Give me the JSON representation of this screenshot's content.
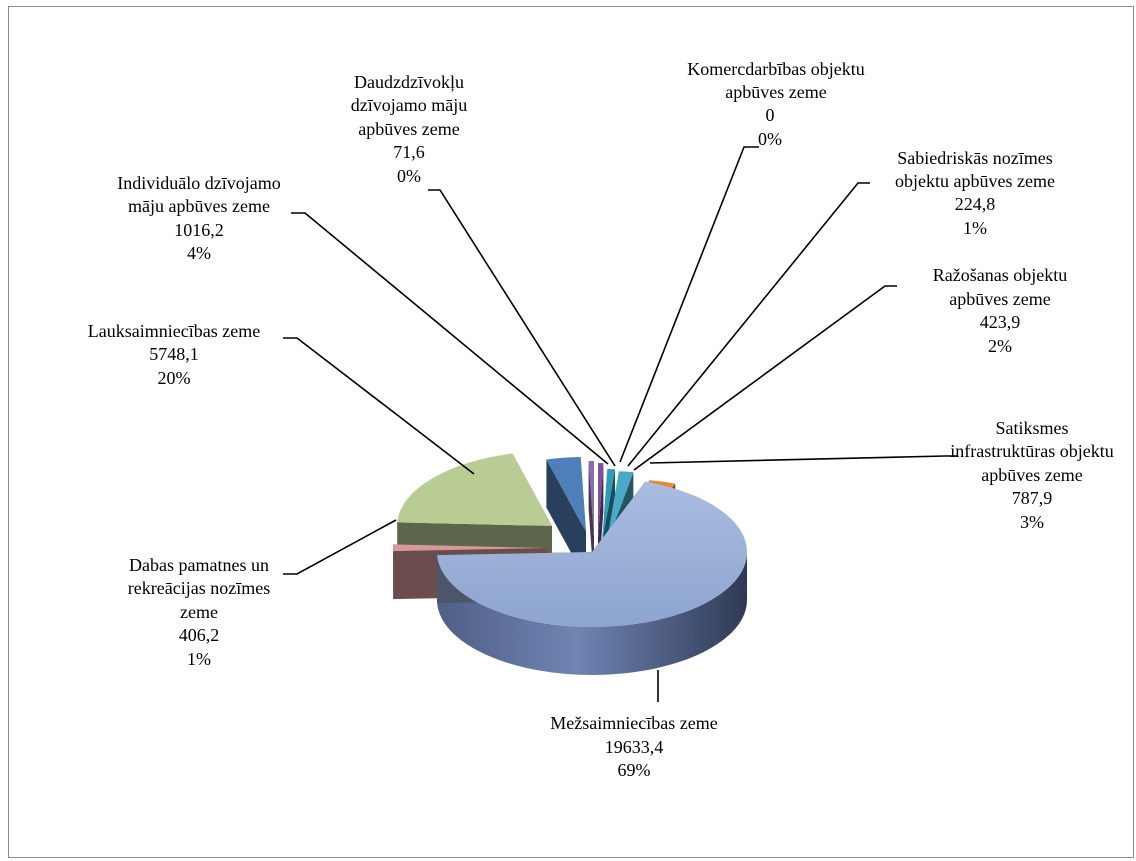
{
  "chart_data": {
    "type": "pie",
    "title": "",
    "slices": [
      {
        "label": "Komercdarbības objektu apbūves zeme",
        "value": 0,
        "percent": "0%",
        "display_value": "0",
        "color": "#7f4fa0"
      },
      {
        "label": "Sabiedriskās nozīmes objektu apbūves zeme",
        "value": 224.8,
        "percent": "1%",
        "display_value": "224,8",
        "color": "#2e9bb8"
      },
      {
        "label": "Ražošanas objektu apbūves zeme",
        "value": 423.9,
        "percent": "2%",
        "display_value": "423,9",
        "color": "#4aa9c6"
      },
      {
        "label": "Satiksmes infrastruktūras objektu apbūves zeme",
        "value": 787.9,
        "percent": "3%",
        "display_value": "787,9",
        "color": "#e68a3a"
      },
      {
        "label": "Mežsaimniecības zeme",
        "value": 19633.4,
        "percent": "69%",
        "display_value": "19633,4",
        "color": "#95abd4"
      },
      {
        "label": "Dabas pamatnes un rekreācijas nozīmes zeme",
        "value": 406.2,
        "percent": "1%",
        "display_value": "406,2",
        "color": "#d49a98"
      },
      {
        "label": "Lauksaimniecības zeme",
        "value": 5748.1,
        "percent": "20%",
        "display_value": "5748,1",
        "color": "#b8cc93"
      },
      {
        "label": "Individuālo dzīvojamo māju apbūves zeme",
        "value": 1016.2,
        "percent": "4%",
        "display_value": "1016,2",
        "color": "#4f7fb8"
      },
      {
        "label": "Daudzdzīvokļu dzīvojamo māju apbūves zeme",
        "value": 71.6,
        "percent": "0%",
        "display_value": "71,6",
        "color": "#8a6bb0"
      }
    ]
  },
  "labels": {
    "komerc": [
      "Komercdarbības objektu",
      "apbūves zeme",
      "0",
      "0%"
    ],
    "sabiedr": [
      "Sabiedriskās nozīmes",
      "objektu apbūves zeme",
      "224,8",
      "1%"
    ],
    "razos": [
      "Ražošanas objektu",
      "apbūves zeme",
      "423,9",
      "2%"
    ],
    "satiksm": [
      "Satiksmes",
      "infrastruktūras objektu",
      "apbūves zeme",
      "787,9",
      "3%"
    ],
    "mezs": [
      "Mežsaimniecības zeme",
      "19633,4",
      "69%"
    ],
    "dabas": [
      "Dabas pamatnes un",
      "rekreācijas nozīmes",
      "zeme",
      "406,2",
      "1%"
    ],
    "lauks": [
      "Lauksaimniecības zeme",
      "5748,1",
      "20%"
    ],
    "indiv": [
      "Individuālo dzīvojamo",
      "māju apbūves zeme",
      "1016,2",
      "4%"
    ],
    "daudz": [
      "Daudzdzīvokļu",
      "dzīvojamo māju",
      "apbūves zeme",
      "71,6",
      "0%"
    ]
  }
}
